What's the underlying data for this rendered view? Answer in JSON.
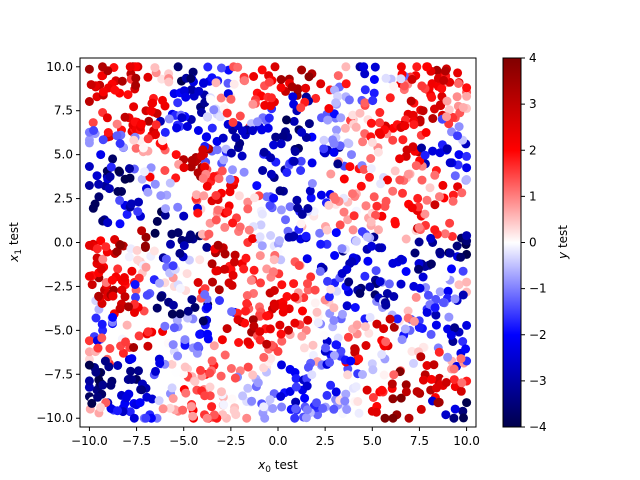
{
  "chart_data": {
    "type": "scatter",
    "title": "",
    "xlabel": "x_0 test",
    "ylabel": "x_1 test",
    "xlim": [
      -10.5,
      10.5
    ],
    "ylim": [
      -10.5,
      10.5
    ],
    "xticks": [
      -10.0,
      -7.5,
      -5.0,
      -2.5,
      0.0,
      2.5,
      5.0,
      7.5,
      10.0
    ],
    "yticks": [
      -10.0,
      -7.5,
      -5.0,
      -2.5,
      0.0,
      2.5,
      5.0,
      7.5,
      10.0
    ],
    "xtick_labels": [
      "−10.0",
      "−7.5",
      "−5.0",
      "−2.5",
      "0.0",
      "2.5",
      "5.0",
      "7.5",
      "10.0"
    ],
    "ytick_labels": [
      "−10.0",
      "−7.5",
      "−5.0",
      "−2.5",
      "0.0",
      "2.5",
      "5.0",
      "7.5",
      "10.0"
    ],
    "grid": false,
    "colorbar": {
      "label": "y test",
      "colormap": "seismic",
      "vmin": -4,
      "vmax": 4,
      "ticks": [
        -4,
        -3,
        -2,
        -1,
        0,
        1,
        2,
        3,
        4
      ],
      "tick_labels": [
        "−4",
        "−3",
        "−2",
        "−1",
        "0",
        "1",
        "2",
        "3",
        "4"
      ]
    },
    "point_count": 1500,
    "points": [
      [
        -9.3,
        9.5,
        2.8
      ],
      [
        -8.6,
        9.2,
        2.6
      ],
      [
        -7.8,
        9.6,
        3.0
      ],
      [
        -6.9,
        9.4,
        2.5
      ],
      [
        -5.8,
        9.6,
        0.4
      ],
      [
        -4.5,
        9.7,
        -3.6
      ],
      [
        -3.2,
        9.2,
        -1.8
      ],
      [
        -1.8,
        9.4,
        1.6
      ],
      [
        -0.5,
        9.5,
        2.4
      ],
      [
        0.6,
        9.3,
        3.4
      ],
      [
        1.8,
        9.6,
        3.2
      ],
      [
        3.2,
        9.5,
        1.2
      ],
      [
        4.6,
        9.6,
        -2.6
      ],
      [
        6.0,
        9.3,
        -0.5
      ],
      [
        7.3,
        9.5,
        2.2
      ],
      [
        8.7,
        9.6,
        2.8
      ],
      [
        9.6,
        9.1,
        2.5
      ],
      [
        -9.6,
        8.3,
        2.4
      ],
      [
        -8.4,
        8.5,
        2.0
      ],
      [
        -6.6,
        8.2,
        1.8
      ],
      [
        -4.9,
        8.6,
        -2.6
      ],
      [
        -3.9,
        8.4,
        -3.0
      ],
      [
        -2.6,
        8.3,
        0.6
      ],
      [
        -1.1,
        8.5,
        1.9
      ],
      [
        0.4,
        8.6,
        2.9
      ],
      [
        2.0,
        8.2,
        1.7
      ],
      [
        3.6,
        8.3,
        -0.6
      ],
      [
        5.1,
        8.5,
        -1.8
      ],
      [
        6.7,
        8.7,
        1.1
      ],
      [
        8.1,
        8.4,
        2.1
      ],
      [
        9.5,
        8.3,
        0.9
      ],
      [
        -9.3,
        7.4,
        1.6
      ],
      [
        -7.9,
        7.1,
        2.3
      ],
      [
        -7.0,
        7.5,
        2.7
      ],
      [
        -5.6,
        7.3,
        -2.2
      ],
      [
        -4.6,
        7.0,
        -2.9
      ],
      [
        -3.3,
        7.6,
        -0.3
      ],
      [
        -2.0,
        7.2,
        1.4
      ],
      [
        -0.8,
        7.1,
        -1.1
      ],
      [
        1.0,
        7.5,
        -2.8
      ],
      [
        2.6,
        7.3,
        -1.3
      ],
      [
        4.0,
        7.0,
        0.4
      ],
      [
        5.4,
        7.4,
        1.7
      ],
      [
        6.9,
        7.3,
        2.4
      ],
      [
        8.3,
        7.6,
        2.6
      ],
      [
        9.4,
        7.1,
        1.3
      ],
      [
        -9.7,
        6.2,
        -0.8
      ],
      [
        -8.3,
        6.4,
        1.9
      ],
      [
        -6.7,
        6.1,
        2.2
      ],
      [
        -5.2,
        6.6,
        -1.5
      ],
      [
        -3.8,
        6.0,
        -1.9
      ],
      [
        -2.4,
        6.4,
        -3.1
      ],
      [
        -1.0,
        6.6,
        -2.5
      ],
      [
        0.4,
        6.3,
        -3.3
      ],
      [
        1.8,
        6.0,
        -2.0
      ],
      [
        3.1,
        6.4,
        -0.8
      ],
      [
        4.6,
        6.2,
        1.2
      ],
      [
        6.1,
        6.5,
        2.0
      ],
      [
        7.6,
        6.1,
        1.5
      ],
      [
        9.2,
        6.3,
        -0.9
      ],
      [
        -9.4,
        5.0,
        -2.2
      ],
      [
        -8.2,
        5.4,
        -1.4
      ],
      [
        -6.9,
        5.2,
        0.7
      ],
      [
        -5.4,
        5.0,
        1.9
      ],
      [
        -4.4,
        4.6,
        3.1
      ],
      [
        -3.5,
        5.2,
        -1.2
      ],
      [
        -2.1,
        5.4,
        -3.2
      ],
      [
        -0.6,
        5.0,
        -2.4
      ],
      [
        0.9,
        5.3,
        -3.5
      ],
      [
        2.5,
        5.1,
        -2.7
      ],
      [
        3.9,
        5.0,
        -1.0
      ],
      [
        5.3,
        5.4,
        0.9
      ],
      [
        6.8,
        4.9,
        2.7
      ],
      [
        8.2,
        5.2,
        -2.4
      ],
      [
        9.6,
        5.0,
        -2.1
      ],
      [
        -9.6,
        3.8,
        -2.5
      ],
      [
        -8.4,
        4.0,
        -3.4
      ],
      [
        -7.2,
        3.6,
        -0.6
      ],
      [
        -6.0,
        4.1,
        1.4
      ],
      [
        -4.6,
        4.3,
        3.3
      ],
      [
        -3.2,
        3.8,
        1.6
      ],
      [
        -1.8,
        4.0,
        -0.9
      ],
      [
        -0.2,
        3.7,
        -3.3
      ],
      [
        1.2,
        4.1,
        -1.6
      ],
      [
        2.8,
        3.9,
        0.8
      ],
      [
        4.3,
        4.2,
        1.9
      ],
      [
        5.6,
        3.7,
        -0.3
      ],
      [
        7.0,
        3.9,
        0.6
      ],
      [
        8.4,
        4.1,
        1.8
      ],
      [
        9.4,
        3.8,
        -1.2
      ],
      [
        -9.5,
        2.6,
        -3.6
      ],
      [
        -8.3,
        2.9,
        -3.8
      ],
      [
        -7.4,
        2.3,
        -2.8
      ],
      [
        -5.9,
        2.7,
        -0.7
      ],
      [
        -4.3,
        2.4,
        1.3
      ],
      [
        -3.0,
        2.8,
        2.1
      ],
      [
        -1.6,
        2.3,
        0.9
      ],
      [
        -0.4,
        2.6,
        -1.4
      ],
      [
        1.0,
        2.4,
        -3.0
      ],
      [
        2.3,
        2.7,
        -2.2
      ],
      [
        3.7,
        2.3,
        0.5
      ],
      [
        5.1,
        2.6,
        1.3
      ],
      [
        6.6,
        2.8,
        1.6
      ],
      [
        7.9,
        2.4,
        1.1
      ],
      [
        9.3,
        2.7,
        1.8
      ],
      [
        -9.2,
        1.3,
        -3.2
      ],
      [
        -8.0,
        1.6,
        -1.8
      ],
      [
        -6.4,
        1.2,
        -3.9
      ],
      [
        -5.0,
        1.5,
        -2.7
      ],
      [
        -3.6,
        1.1,
        0.8
      ],
      [
        -2.2,
        1.4,
        1.5
      ],
      [
        -0.9,
        1.0,
        -0.4
      ],
      [
        0.4,
        1.3,
        -1.2
      ],
      [
        1.9,
        1.5,
        0.2
      ],
      [
        3.3,
        1.0,
        1.4
      ],
      [
        4.8,
        1.4,
        0.7
      ],
      [
        6.2,
        1.2,
        1.9
      ],
      [
        7.6,
        1.5,
        2.2
      ],
      [
        9.1,
        1.1,
        1.5
      ],
      [
        -9.4,
        0.1,
        2.0
      ],
      [
        -8.2,
        -0.2,
        3.2
      ],
      [
        -7.0,
        0.3,
        3.6
      ],
      [
        -5.7,
        -0.1,
        -2.9
      ],
      [
        -4.5,
        0.2,
        -3.3
      ],
      [
        -2.9,
        -0.3,
        2.8
      ],
      [
        -1.6,
        0.0,
        1.6
      ],
      [
        -0.2,
        -0.2,
        -0.2
      ],
      [
        1.2,
        0.2,
        -2.3
      ],
      [
        2.6,
        -0.1,
        -1.6
      ],
      [
        4.1,
        0.1,
        -0.9
      ],
      [
        5.5,
        -0.3,
        -2.6
      ],
      [
        6.8,
        0.2,
        0.6
      ],
      [
        8.2,
        0.0,
        -3.2
      ],
      [
        9.5,
        -0.2,
        -3.5
      ],
      [
        -9.6,
        -1.2,
        2.4
      ],
      [
        -8.5,
        -1.5,
        1.6
      ],
      [
        -7.3,
        -1.1,
        0.4
      ],
      [
        -5.9,
        -1.4,
        -1.1
      ],
      [
        -4.7,
        -1.0,
        -0.4
      ],
      [
        -3.2,
        -1.6,
        2.6
      ],
      [
        -1.9,
        -1.2,
        2.2
      ],
      [
        -0.6,
        -1.5,
        0.8
      ],
      [
        0.9,
        -1.1,
        1.3
      ],
      [
        2.3,
        -1.4,
        -2.5
      ],
      [
        3.8,
        -1.2,
        -2.9
      ],
      [
        5.2,
        -1.6,
        -1.4
      ],
      [
        6.6,
        -1.0,
        -2.2
      ],
      [
        8.0,
        -1.3,
        -3.1
      ],
      [
        9.2,
        -1.5,
        -2.0
      ],
      [
        -9.2,
        -2.7,
        2.9
      ],
      [
        -8.1,
        -2.4,
        1.9
      ],
      [
        -6.8,
        -2.9,
        -1.3
      ],
      [
        -5.5,
        -2.5,
        0.3
      ],
      [
        -4.0,
        -2.8,
        2.0
      ],
      [
        -2.6,
        -2.3,
        2.7
      ],
      [
        -1.3,
        -2.9,
        1.1
      ],
      [
        0.2,
        -2.4,
        1.9
      ],
      [
        1.6,
        -2.7,
        1.2
      ],
      [
        3.0,
        -2.3,
        -1.8
      ],
      [
        4.4,
        -2.6,
        -3.6
      ],
      [
        5.8,
        -2.9,
        -3.0
      ],
      [
        7.2,
        -2.5,
        -2.4
      ],
      [
        8.6,
        -2.8,
        -0.7
      ],
      [
        9.6,
        -2.4,
        0.5
      ],
      [
        -9.5,
        -3.8,
        -0.6
      ],
      [
        -8.3,
        -3.5,
        2.7
      ],
      [
        -7.1,
        -3.9,
        1.4
      ],
      [
        -5.8,
        -3.4,
        -3.4
      ],
      [
        -4.4,
        -3.7,
        -3.7
      ],
      [
        -3.1,
        -3.3,
        -1.6
      ],
      [
        -1.6,
        -3.8,
        1.4
      ],
      [
        -0.2,
        -3.5,
        2.6
      ],
      [
        1.3,
        -3.9,
        2.0
      ],
      [
        2.7,
        -3.4,
        0.4
      ],
      [
        4.1,
        -3.7,
        -1.9
      ],
      [
        5.5,
        -3.5,
        -0.8
      ],
      [
        6.9,
        -3.9,
        0.5
      ],
      [
        8.3,
        -3.6,
        -1.5
      ],
      [
        9.5,
        -3.3,
        -2.6
      ],
      [
        -9.3,
        -5.0,
        -1.7
      ],
      [
        -8.0,
        -4.7,
        0.6
      ],
      [
        -6.7,
        -5.1,
        2.2
      ],
      [
        -5.3,
        -4.8,
        -0.9
      ],
      [
        -4.1,
        -5.2,
        -2.4
      ],
      [
        -2.7,
        -4.9,
        2.9
      ],
      [
        -1.4,
        -5.1,
        3.4
      ],
      [
        0.1,
        -4.7,
        2.5
      ],
      [
        1.5,
        -5.0,
        1.0
      ],
      [
        2.9,
        -4.8,
        -0.6
      ],
      [
        4.2,
        -5.2,
        0.9
      ],
      [
        5.6,
        -4.9,
        2.6
      ],
      [
        7.0,
        -5.0,
        -1.2
      ],
      [
        8.4,
        -4.7,
        -2.2
      ],
      [
        9.6,
        -5.1,
        -2.7
      ],
      [
        -9.6,
        -6.1,
        0.9
      ],
      [
        -8.2,
        -6.3,
        1.7
      ],
      [
        -6.9,
        -5.9,
        2.8
      ],
      [
        -5.5,
        -6.2,
        -0.3
      ],
      [
        -4.2,
        -6.0,
        -1.4
      ],
      [
        -2.8,
        -6.4,
        1.2
      ],
      [
        -1.5,
        -5.8,
        2.0
      ],
      [
        0.0,
        -6.2,
        1.5
      ],
      [
        1.4,
        -6.0,
        0.3
      ],
      [
        2.8,
        -6.4,
        -1.9
      ],
      [
        4.1,
        -6.1,
        2.4
      ],
      [
        5.6,
        -5.8,
        1.8
      ],
      [
        7.1,
        -6.2,
        0.2
      ],
      [
        8.5,
        -6.0,
        -1.0
      ],
      [
        9.7,
        -6.3,
        -2.3
      ],
      [
        -9.4,
        -7.4,
        -3.7
      ],
      [
        -8.5,
        -7.0,
        -2.8
      ],
      [
        -7.4,
        -7.3,
        -3.3
      ],
      [
        -6.2,
        -6.9,
        -1.9
      ],
      [
        -4.8,
        -7.2,
        0.4
      ],
      [
        -3.4,
        -7.0,
        1.8
      ],
      [
        -2.0,
        -7.3,
        1.0
      ],
      [
        -0.6,
        -7.1,
        0.2
      ],
      [
        0.9,
        -7.4,
        -2.1
      ],
      [
        2.3,
        -7.0,
        -0.7
      ],
      [
        3.7,
        -7.2,
        -1.4
      ],
      [
        5.0,
        -6.9,
        -0.4
      ],
      [
        6.5,
        -7.3,
        1.3
      ],
      [
        7.9,
        -7.0,
        2.4
      ],
      [
        9.2,
        -7.2,
        0.8
      ],
      [
        -9.6,
        -8.4,
        -3.4
      ],
      [
        -8.3,
        -8.7,
        -2.6
      ],
      [
        -7.0,
        -8.3,
        -2.9
      ],
      [
        -5.7,
        -8.6,
        -0.9
      ],
      [
        -4.3,
        -8.4,
        1.4
      ],
      [
        -2.9,
        -8.8,
        0.6
      ],
      [
        -1.6,
        -8.3,
        -0.5
      ],
      [
        -0.2,
        -8.6,
        -1.2
      ],
      [
        1.3,
        -8.4,
        -2.2
      ],
      [
        2.6,
        -8.7,
        -1.6
      ],
      [
        4.0,
        -8.3,
        -0.2
      ],
      [
        5.4,
        -8.5,
        2.0
      ],
      [
        6.8,
        -8.1,
        3.5
      ],
      [
        8.1,
        -8.4,
        3.1
      ],
      [
        9.4,
        -8.2,
        2.2
      ],
      [
        -9.5,
        -9.7,
        0.7
      ],
      [
        -8.2,
        -9.4,
        -2.1
      ],
      [
        -6.8,
        -9.8,
        -1.7
      ],
      [
        -5.3,
        -9.6,
        1.0
      ],
      [
        -3.9,
        -9.8,
        1.6
      ],
      [
        -2.3,
        -9.4,
        0.5
      ],
      [
        -0.8,
        -9.7,
        -0.8
      ],
      [
        0.7,
        -9.5,
        -1.9
      ],
      [
        2.1,
        -9.8,
        -1.2
      ],
      [
        3.6,
        -9.4,
        -0.4
      ],
      [
        5.0,
        -9.6,
        2.5
      ],
      [
        6.3,
        -9.8,
        3.6
      ],
      [
        7.6,
        -9.5,
        2.7
      ],
      [
        8.9,
        -9.8,
        -2.6
      ],
      [
        9.8,
        -9.6,
        -3.5
      ]
    ]
  }
}
